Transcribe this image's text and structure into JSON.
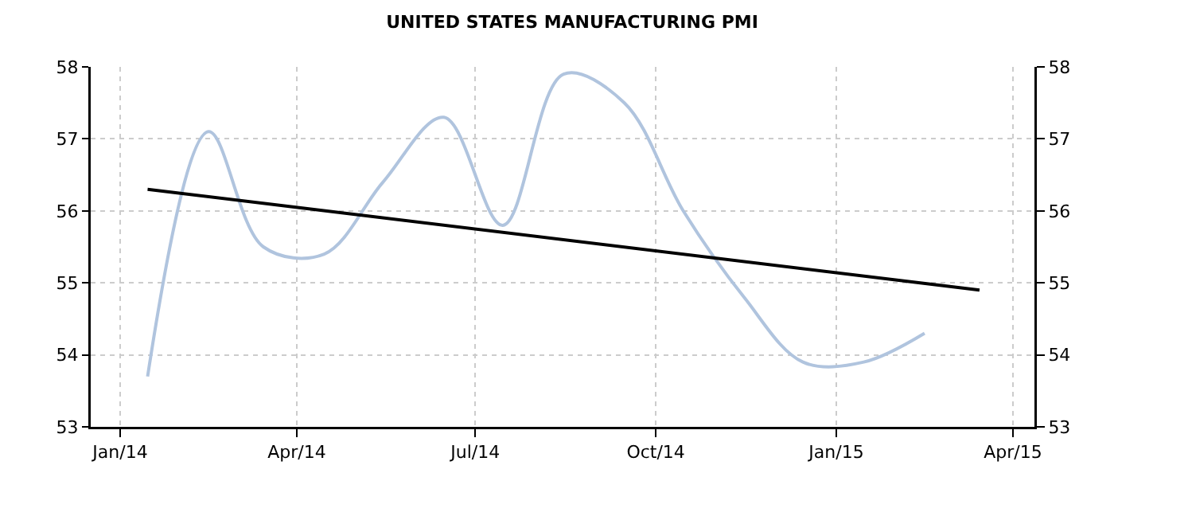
{
  "chart_data": {
    "type": "line",
    "title": "UNITED STATES MANUFACTURING PMI",
    "x": [
      "2014-01-15",
      "2014-02-15",
      "2014-03-15",
      "2014-04-15",
      "2014-05-15",
      "2014-06-15",
      "2014-07-15",
      "2014-08-15",
      "2014-09-15",
      "2014-10-15",
      "2014-11-15",
      "2014-12-15",
      "2015-01-15",
      "2015-02-15"
    ],
    "series": [
      {
        "color": "#b0c4de",
        "values": [
          53.7,
          57.1,
          55.5,
          55.4,
          56.4,
          57.3,
          55.8,
          57.9,
          57.5,
          56.0,
          54.8,
          53.9,
          53.9,
          54.3
        ]
      },
      {
        "type": "line",
        "color": "#000000",
        "x": [
          "2014-01-15",
          "2015-03-15"
        ],
        "values": [
          56.3,
          54.9
        ]
      }
    ],
    "xlim": [
      "2013-12-17",
      "2015-04-12"
    ],
    "xticks": [
      {
        "value": "2014-01-01",
        "label": "Jan/14"
      },
      {
        "value": "2014-04-01",
        "label": "Apr/14"
      },
      {
        "value": "2014-07-01",
        "label": "Jul/14"
      },
      {
        "value": "2014-10-01",
        "label": "Oct/14"
      },
      {
        "value": "2015-01-01",
        "label": "Jan/15"
      },
      {
        "value": "2015-04-01",
        "label": "Apr/15"
      }
    ],
    "ylim": [
      53,
      58
    ],
    "yticks": [
      53,
      54,
      55,
      56,
      57,
      58
    ],
    "y2lim": [
      53,
      58
    ],
    "y2ticks": [
      53,
      54,
      55,
      56,
      57,
      58
    ],
    "grid": true,
    "line_style": "solid"
  }
}
